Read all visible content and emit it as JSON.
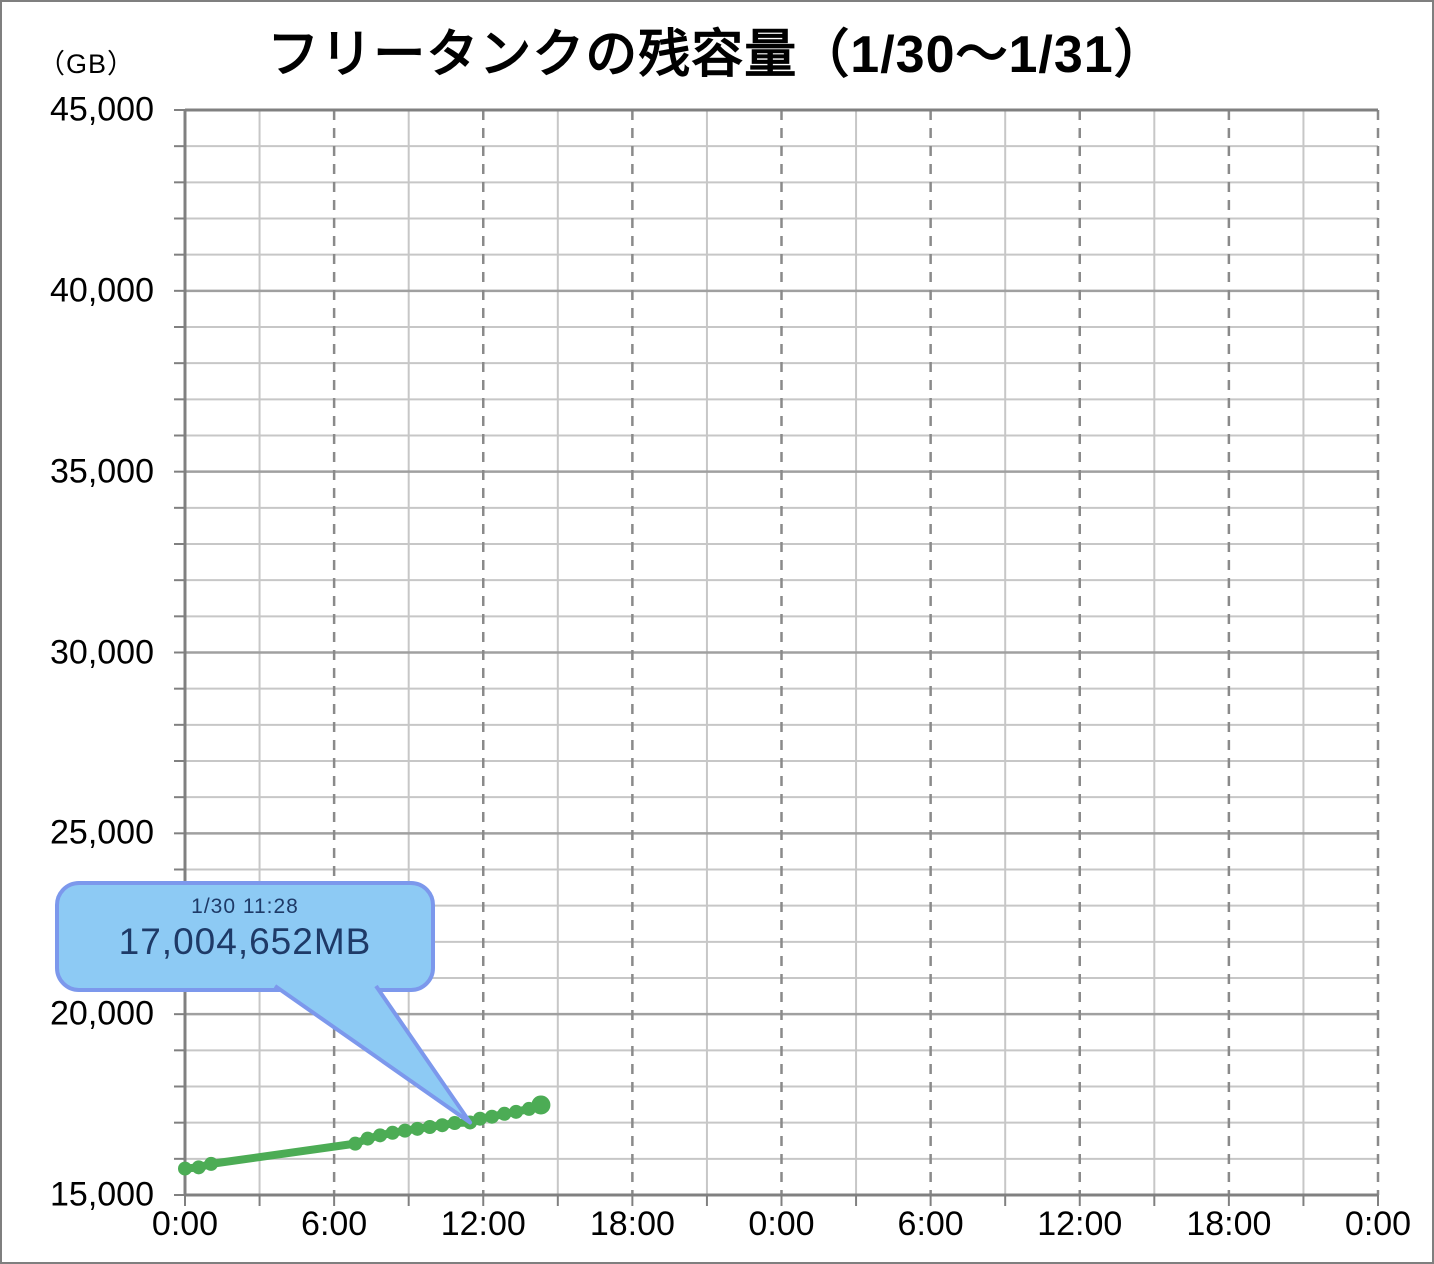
{
  "chart_data": {
    "type": "line",
    "title": "フリータンクの残容量（1/30～1/31）",
    "ylabel": "（GB）",
    "xlim": [
      0,
      48
    ],
    "ylim": [
      15000,
      45000
    ],
    "grid": true,
    "x_tick_labels": [
      "0:00",
      "6:00",
      "12:00",
      "18:00",
      "0:00",
      "6:00",
      "12:00",
      "18:00",
      "0:00"
    ],
    "x_tick_step_hours": 6,
    "x_minor_step_hours": 3,
    "y_tick_labels": [
      "15,000",
      "20,000",
      "25,000",
      "30,000",
      "35,000",
      "40,000",
      "45,000"
    ],
    "y_major_step": 5000,
    "y_minor_step": 1000,
    "series": [
      {
        "color": "#4cac55",
        "points": [
          [
            0,
            15730
          ],
          [
            0.55,
            15765
          ],
          [
            1.05,
            15860
          ],
          [
            6.85,
            16420
          ],
          [
            7.35,
            16560
          ],
          [
            7.85,
            16650
          ],
          [
            8.35,
            16720
          ],
          [
            8.85,
            16780
          ],
          [
            9.35,
            16830
          ],
          [
            9.85,
            16880
          ],
          [
            10.35,
            16930
          ],
          [
            10.85,
            16990
          ],
          [
            11.47,
            17005
          ],
          [
            11.87,
            17110
          ],
          [
            12.35,
            17165
          ],
          [
            12.85,
            17245
          ],
          [
            13.32,
            17300
          ],
          [
            13.84,
            17380
          ],
          [
            14.32,
            17490
          ]
        ]
      }
    ],
    "annotation": {
      "label_line1": "1/30 11:28",
      "label_line2": "17,004,652MB",
      "target_point": [
        11.47,
        17005
      ],
      "fill": "#8dcaf4",
      "border": "#7c98ec",
      "text_color": "#1e3a67"
    }
  }
}
